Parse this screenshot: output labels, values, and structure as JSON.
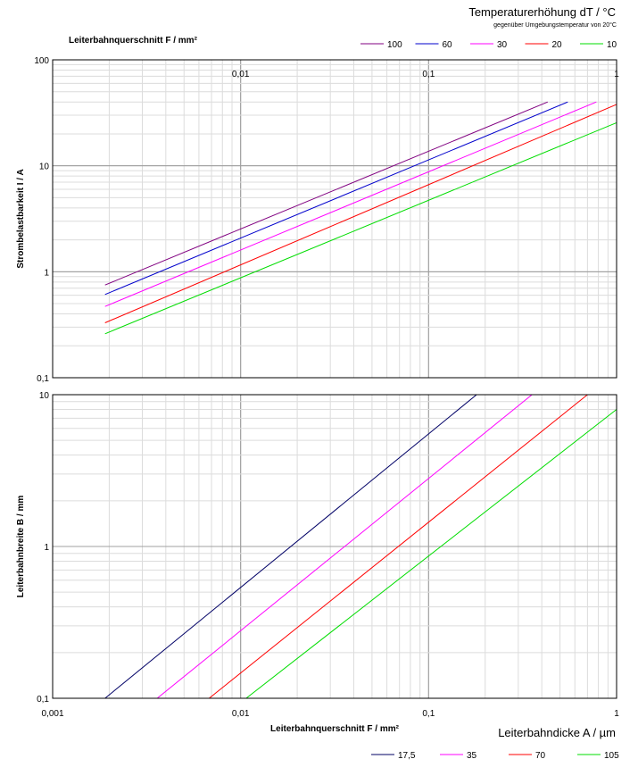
{
  "chart_data": [
    {
      "type": "line",
      "x_scale": "log",
      "y_scale": "log",
      "title": "Temperaturerhöhung dT / °C",
      "subtitle": "gegenüber Umgebungstemperatur von 20°C",
      "xlabel_top": "Leiterbahnquerschnitt F / mm²",
      "ylabel": "Strombelastbarkeit I / A",
      "xlim": [
        0.001,
        1
      ],
      "ylim": [
        0.1,
        100
      ],
      "x_ticks": [
        "0,01",
        "0,1",
        "1"
      ],
      "y_ticks": [
        "0,1",
        "1",
        "10",
        "100"
      ],
      "legend_position": "top-right",
      "grid": true,
      "series": [
        {
          "name": "100",
          "color": "#800080",
          "x": [
            0.0019,
            0.43
          ],
          "y": [
            0.75,
            40
          ]
        },
        {
          "name": "60",
          "color": "#0000cc",
          "x": [
            0.0019,
            0.55
          ],
          "y": [
            0.61,
            40
          ]
        },
        {
          "name": "30",
          "color": "#ff00ff",
          "x": [
            0.0019,
            0.78
          ],
          "y": [
            0.47,
            40
          ]
        },
        {
          "name": "20",
          "color": "#ff0000",
          "x": [
            0.0019,
            1.0
          ],
          "y": [
            0.33,
            38
          ]
        },
        {
          "name": "10",
          "color": "#00dd00",
          "x": [
            0.0019,
            1.0
          ],
          "y": [
            0.26,
            25.5
          ]
        }
      ]
    },
    {
      "type": "line",
      "x_scale": "log",
      "y_scale": "log",
      "xlabel": "Leiterbahnquerschnitt F / mm²",
      "ylabel": "Leiterbahnbreite B / mm",
      "xlim": [
        0.001,
        1
      ],
      "ylim": [
        0.1,
        10
      ],
      "x_ticks": [
        "0,001",
        "0,01",
        "0,1",
        "1"
      ],
      "y_ticks": [
        "0,1",
        "1",
        "10"
      ],
      "legend_title": "Leiterbahndicke A / µm",
      "legend_position": "bottom-right",
      "grid": true,
      "series": [
        {
          "name": "17,5",
          "color": "#000066",
          "x": [
            0.0019,
            0.18
          ],
          "y": [
            0.1,
            10
          ]
        },
        {
          "name": "35",
          "color": "#ff00ff",
          "x": [
            0.0036,
            0.355
          ],
          "y": [
            0.1,
            10
          ]
        },
        {
          "name": "70",
          "color": "#ff0000",
          "x": [
            0.0068,
            0.7
          ],
          "y": [
            0.1,
            10
          ]
        },
        {
          "name": "105",
          "color": "#00dd00",
          "x": [
            0.0107,
            1.0
          ],
          "y": [
            0.1,
            8
          ]
        }
      ]
    }
  ]
}
